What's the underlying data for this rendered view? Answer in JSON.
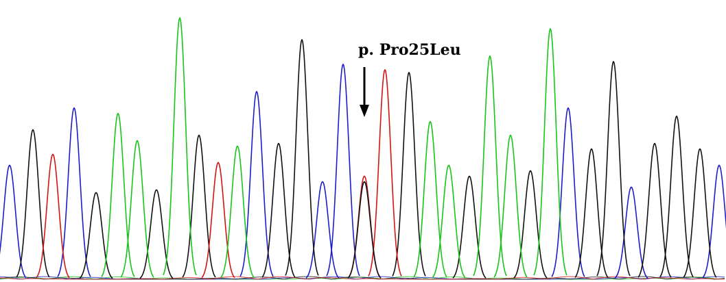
{
  "chart_data": {
    "type": "line",
    "title": "",
    "xlabel": "",
    "ylabel": "",
    "xlim": [
      0,
      1058
    ],
    "ylim": [
      0,
      100
    ],
    "grid": false,
    "legend": "none",
    "colors": {
      "A": "#19c219",
      "C": "#1c1cc8",
      "G": "#111111",
      "T": "#d21414"
    },
    "series": [
      {
        "base": "C",
        "peaks": [
          [
            14,
            42
          ],
          [
            108,
            63
          ],
          [
            374,
            69
          ],
          [
            470,
            36
          ],
          [
            500,
            79
          ],
          [
            828,
            63
          ],
          [
            920,
            34
          ],
          [
            1048,
            42
          ]
        ]
      },
      {
        "base": "G",
        "peaks": [
          [
            48,
            55
          ],
          [
            140,
            32
          ],
          [
            228,
            33
          ],
          [
            290,
            53
          ],
          [
            406,
            50
          ],
          [
            440,
            88
          ],
          [
            596,
            76
          ],
          [
            684,
            38
          ],
          [
            773,
            40
          ],
          [
            862,
            48
          ],
          [
            894,
            80
          ],
          [
            954,
            50
          ],
          [
            986,
            60
          ],
          [
            1020,
            48
          ]
        ]
      },
      {
        "base": "T",
        "peaks": [
          [
            77,
            46
          ],
          [
            318,
            43
          ],
          [
            531,
            38
          ],
          [
            561,
            77
          ]
        ]
      },
      {
        "base": "A",
        "peaks": [
          [
            172,
            61
          ],
          [
            200,
            51
          ],
          [
            262,
            96
          ],
          [
            346,
            49
          ],
          [
            627,
            58
          ],
          [
            654,
            42
          ],
          [
            714,
            82
          ],
          [
            744,
            53
          ],
          [
            802,
            92
          ]
        ]
      },
      {
        "base": "G",
        "peaks": [
          [
            531,
            36
          ]
        ]
      }
    ],
    "annotations": [
      {
        "text": "p. Pro25Leu",
        "x": 531,
        "arrow": "down"
      }
    ]
  }
}
